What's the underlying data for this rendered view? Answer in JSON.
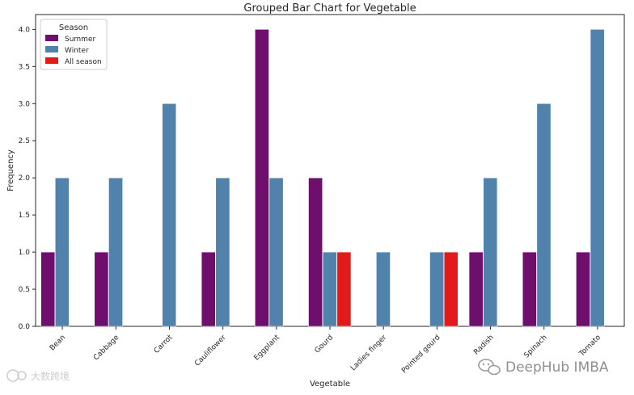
{
  "chart_data": {
    "type": "bar",
    "title": "Grouped Bar Chart for Vegetable",
    "xlabel": "Vegetable",
    "ylabel": "Frequency",
    "ylim": [
      0,
      4.2
    ],
    "yticks": [
      "0.0",
      "0.5",
      "1.0",
      "1.5",
      "2.0",
      "2.5",
      "3.0",
      "3.5",
      "4.0"
    ],
    "categories": [
      "Bean",
      "Cabbage",
      "Carrot",
      "Cauliflower",
      "Eggplant",
      "Gourd",
      "Ladies finger",
      "Pointed gourd",
      "Radish",
      "Spinach",
      "Tomato"
    ],
    "series": [
      {
        "name": "Summer",
        "color": "#6e0f6e",
        "values": [
          1,
          1,
          null,
          1,
          4,
          2,
          null,
          null,
          1,
          1,
          1
        ]
      },
      {
        "name": "Winter",
        "color": "#5082ab",
        "values": [
          2,
          2,
          3,
          2,
          2,
          1,
          1,
          1,
          2,
          3,
          4
        ]
      },
      {
        "name": "All season",
        "color": "#e31a1c",
        "values": [
          null,
          null,
          null,
          null,
          null,
          1,
          null,
          1,
          null,
          null,
          null
        ]
      }
    ],
    "legend": {
      "title": "Season",
      "placement": "top-left"
    },
    "grid": false
  },
  "watermark": {
    "left_text": "大数跨境",
    "right_text": "DeepHub IMBA",
    "icon": "wechat-icon"
  }
}
